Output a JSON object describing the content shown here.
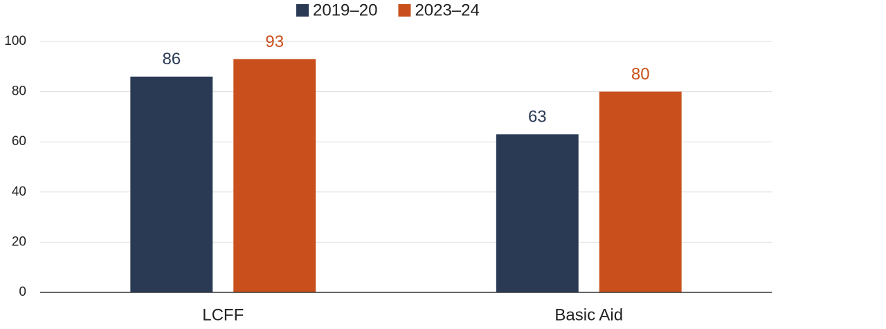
{
  "chart_data": {
    "type": "bar",
    "categories": [
      "LCFF",
      "Basic Aid"
    ],
    "series": [
      {
        "name": "2019–20",
        "color": "#2a3a55",
        "values": [
          86,
          63
        ]
      },
      {
        "name": "2023–24",
        "color": "#c9501c",
        "values": [
          93,
          80
        ]
      }
    ],
    "ylim": [
      0,
      100
    ],
    "yticks": [
      0,
      20,
      40,
      60,
      80,
      100
    ],
    "grid": true,
    "legend": "top"
  }
}
